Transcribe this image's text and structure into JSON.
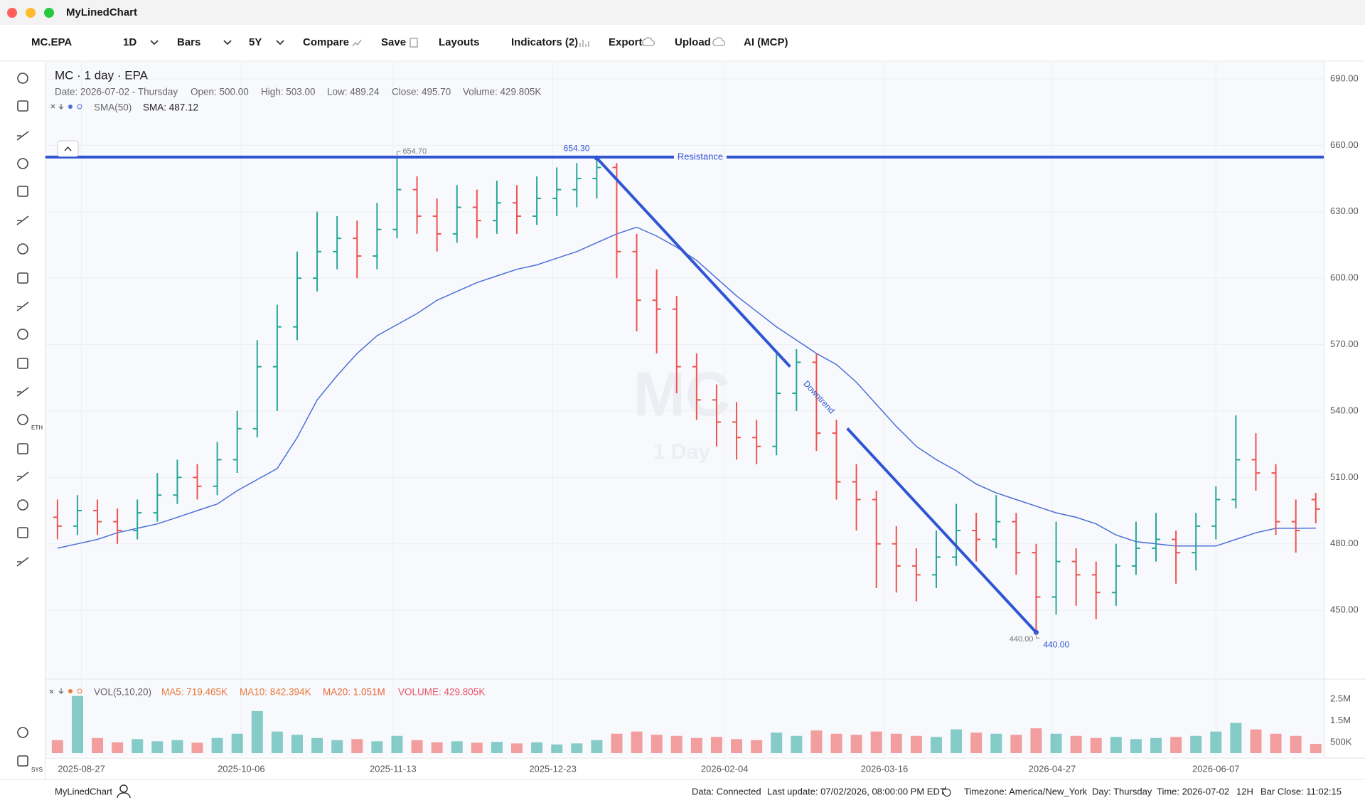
{
  "window": {
    "title": "MyLinedChart"
  },
  "toolbar": {
    "symbol": "MC.EPA",
    "interval": "1D",
    "style": "Bars",
    "range": "5Y",
    "compare": "Compare",
    "save": "Save",
    "layouts": "Layouts",
    "indicators": "Indicators (2)",
    "export": "Export",
    "upload": "Upload",
    "ai": "AI (MCP)"
  },
  "sidebar": {
    "eth": "ETH",
    "sys": "SYS"
  },
  "chart_header": {
    "title": "MC · 1 day · EPA",
    "info": [
      "Date: 2026-07-02 - Thursday",
      "Open: 500.00",
      "High: 503.00",
      "Low: 489.24",
      "Close: 495.70",
      "Volume: 429.805K"
    ]
  },
  "chart_data": {
    "type": "ohlc",
    "x": [
      "2025-08-21",
      "2025-08-26",
      "2025-08-31",
      "2025-09-05",
      "2025-09-10",
      "2025-09-15",
      "2025-09-20",
      "2025-09-25",
      "2025-09-30",
      "2025-10-05",
      "2025-10-10",
      "2025-10-15",
      "2025-10-20",
      "2025-10-25",
      "2025-10-30",
      "2025-11-04",
      "2025-11-09",
      "2025-11-14",
      "2025-11-19",
      "2025-11-24",
      "2025-11-29",
      "2025-12-04",
      "2025-12-09",
      "2025-12-14",
      "2025-12-19",
      "2025-12-24",
      "2025-12-29",
      "2026-01-03",
      "2026-01-08",
      "2026-01-13",
      "2026-01-18",
      "2026-01-23",
      "2026-01-28",
      "2026-02-02",
      "2026-02-07",
      "2026-02-12",
      "2026-02-17",
      "2026-02-22",
      "2026-02-27",
      "2026-03-04",
      "2026-03-09",
      "2026-03-14",
      "2026-03-19",
      "2026-03-24",
      "2026-03-29",
      "2026-04-03",
      "2026-04-08",
      "2026-04-13",
      "2026-04-18",
      "2026-04-23",
      "2026-04-28",
      "2026-05-03",
      "2026-05-08",
      "2026-05-13",
      "2026-05-18",
      "2026-05-23",
      "2026-05-28",
      "2026-06-02",
      "2026-06-07",
      "2026-06-12",
      "2026-06-17",
      "2026-06-22",
      "2026-06-27",
      "2026-07-02"
    ],
    "open": [
      492,
      488,
      495,
      490,
      486,
      494,
      502,
      510,
      506,
      518,
      532,
      560,
      578,
      600,
      612,
      618,
      610,
      622,
      640,
      628,
      620,
      632,
      626,
      634,
      628,
      636,
      640,
      645,
      650,
      612,
      590,
      586,
      560,
      545,
      535,
      528,
      524,
      548,
      562,
      530,
      508,
      500,
      480,
      470,
      466,
      474,
      486,
      482,
      490,
      476,
      456,
      472,
      466,
      458,
      470,
      478,
      482,
      476,
      488,
      500,
      518,
      512,
      490,
      500
    ],
    "high": [
      500,
      502,
      500,
      496,
      500,
      512,
      518,
      516,
      526,
      540,
      572,
      588,
      612,
      630,
      628,
      626,
      634,
      654.7,
      646,
      636,
      642,
      640,
      644,
      642,
      646,
      650,
      652,
      654.3,
      652,
      620,
      604,
      592,
      566,
      552,
      544,
      536,
      566,
      568,
      566,
      536,
      516,
      504,
      488,
      478,
      486,
      498,
      494,
      502,
      494,
      480,
      490,
      478,
      472,
      480,
      490,
      494,
      486,
      494,
      506,
      538,
      530,
      516,
      500,
      503
    ],
    "low": [
      482,
      484,
      484,
      480,
      482,
      490,
      498,
      500,
      502,
      512,
      528,
      540,
      572,
      594,
      604,
      600,
      604,
      618,
      620,
      612,
      616,
      618,
      620,
      620,
      624,
      628,
      632,
      636,
      600,
      576,
      566,
      548,
      536,
      524,
      518,
      516,
      520,
      540,
      522,
      500,
      486,
      460,
      458,
      454,
      460,
      470,
      472,
      478,
      466,
      440,
      448,
      452,
      446,
      452,
      466,
      472,
      462,
      468,
      482,
      496,
      504,
      484,
      476,
      489.24
    ],
    "close": [
      488,
      495,
      490,
      486,
      494,
      502,
      510,
      506,
      518,
      532,
      560,
      578,
      600,
      612,
      618,
      610,
      622,
      640,
      628,
      620,
      632,
      626,
      634,
      628,
      636,
      640,
      645,
      650,
      612,
      590,
      586,
      560,
      545,
      535,
      528,
      524,
      548,
      562,
      530,
      508,
      500,
      480,
      470,
      466,
      474,
      486,
      482,
      490,
      476,
      456,
      472,
      466,
      458,
      470,
      478,
      482,
      476,
      488,
      500,
      518,
      512,
      490,
      486,
      495.7
    ],
    "up_color": "#26a69a",
    "down_color": "#ef5350",
    "xlim": [
      "2025-08-18",
      "2026-07-04"
    ],
    "xticks": [
      "2025-08-27",
      "2025-10-06",
      "2025-11-13",
      "2025-12-23",
      "2026-02-04",
      "2026-03-16",
      "2026-04-27",
      "2026-06-07"
    ],
    "ylim": [
      419.2,
      697.7
    ],
    "yticks": [
      {
        "value": 450,
        "label": "450.00"
      },
      {
        "value": 480,
        "label": "480.00"
      },
      {
        "value": 510,
        "label": "510.00"
      },
      {
        "value": 540,
        "label": "540.00"
      },
      {
        "value": 570,
        "label": "570.00"
      },
      {
        "value": 600,
        "label": "600.00"
      },
      {
        "value": 630,
        "label": "630.00"
      },
      {
        "value": 660,
        "label": "660.00"
      },
      {
        "value": 690,
        "label": "690.00"
      }
    ],
    "grid": true,
    "watermark": "MC",
    "watermark_sub": "1 Day",
    "series": [
      {
        "name": "SMA(50)",
        "color": "#4a6fd8",
        "values": [
          478,
          480,
          482,
          485,
          487,
          489,
          492,
          495,
          498,
          504,
          509,
          514,
          528,
          545,
          556,
          566,
          574,
          579,
          584,
          590,
          594,
          598,
          601,
          604,
          606,
          609,
          612,
          616,
          620,
          623,
          619,
          614,
          608,
          600,
          592,
          585,
          578,
          572,
          566,
          561,
          553,
          543,
          533,
          524,
          518,
          513,
          507,
          503,
          500,
          497,
          494,
          492,
          489,
          484,
          481,
          480,
          479,
          479,
          479,
          482,
          485,
          487,
          487,
          487.12
        ]
      }
    ],
    "sma_legend": "SMA: 487.12",
    "annotations": {
      "resistance": {
        "label": "Resistance",
        "x": "2025-11-14",
        "value": 654.7,
        "value_label": "654.70",
        "color": "#2f55d4"
      },
      "downtrend": {
        "label": "Downtrend",
        "x": [
          "2026-01-03",
          "2026-04-23"
        ],
        "values": [
          654.3,
          440
        ],
        "value_labels": [
          "654.30",
          "440.00"
        ],
        "color": "#2f55d4"
      },
      "low_marker": {
        "x": "2026-04-23",
        "value": 440,
        "label": "440.00"
      }
    },
    "volume": {
      "title": "VOL(5,10,20)",
      "legend": [
        "MA5: 719.465K",
        "MA10: 842.394K",
        "MA20: 1.051M",
        "VOLUME: 429.805K"
      ],
      "values": [
        600000,
        2650000,
        700000,
        500000,
        650000,
        550000,
        600000,
        480000,
        700000,
        900000,
        1950000,
        1000000,
        850000,
        700000,
        600000,
        650000,
        550000,
        800000,
        600000,
        500000,
        550000,
        480000,
        520000,
        450000,
        500000,
        400000,
        450000,
        600000,
        900000,
        1000000,
        850000,
        800000,
        700000,
        750000,
        650000,
        600000,
        950000,
        800000,
        1050000,
        900000,
        850000,
        1000000,
        900000,
        800000,
        750000,
        1100000,
        950000,
        900000,
        850000,
        1150000,
        900000,
        800000,
        700000,
        750000,
        650000,
        700000,
        750000,
        800000,
        1000000,
        1400000,
        1100000,
        900000,
        800000,
        429805
      ],
      "ylim": [
        0,
        3400000
      ],
      "yticks": [
        {
          "value": 500000,
          "label": "500K"
        },
        {
          "value": 1500000,
          "label": "1.5M"
        },
        {
          "value": 2500000,
          "label": "2.5M"
        }
      ]
    }
  },
  "status_bar": {
    "brand": "MyLinedChart",
    "items": [
      "Data: Connected",
      "Last update: 07/02/2026, 08:00:00 PM EDT",
      "Timezone: America/New_York",
      "Day: Thursday",
      "Time: 2026-07-02",
      "12H",
      "Bar Close: 11:02:15"
    ]
  }
}
